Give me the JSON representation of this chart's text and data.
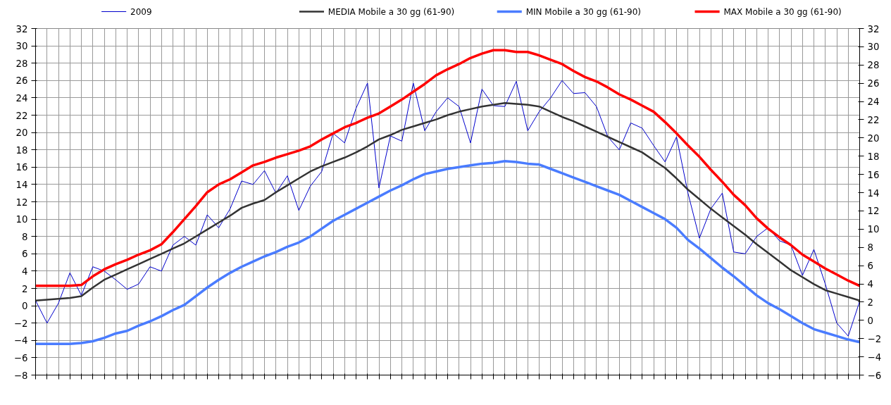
{
  "chart_data": {
    "type": "line",
    "categories": [
      null,
      null,
      null,
      null,
      null,
      null,
      null,
      null,
      null,
      null,
      null,
      null,
      null,
      null,
      null,
      null,
      null,
      null,
      null,
      null,
      null,
      null,
      null,
      null,
      null,
      null,
      null,
      null,
      null,
      null,
      null,
      null,
      null,
      null,
      null,
      null,
      null,
      null,
      null,
      null,
      null,
      null,
      null,
      null,
      null,
      null,
      null,
      null,
      null,
      null,
      null,
      null,
      null,
      null,
      null,
      null,
      null,
      null,
      null,
      null,
      null,
      null,
      null,
      null,
      null,
      null,
      null,
      null,
      null,
      null,
      null,
      null,
      null
    ],
    "ylim": [
      -8,
      32
    ],
    "yticks": [
      -8,
      -6,
      -4,
      -2,
      0,
      2,
      4,
      6,
      8,
      10,
      12,
      14,
      16,
      18,
      20,
      22,
      24,
      26,
      28,
      30,
      32
    ],
    "y2lim": [
      -6,
      32
    ],
    "y2ticks": [
      -6,
      -4,
      -2,
      0,
      2,
      4,
      6,
      8,
      10,
      12,
      14,
      16,
      18,
      20,
      22,
      24,
      26,
      28,
      30,
      32
    ],
    "grid": true,
    "legend": "top",
    "series": [
      {
        "name": "2009",
        "color": "#0000cc",
        "values": [
          0.6,
          -2,
          0.3,
          3.8,
          1.2,
          4.5,
          4,
          3,
          1.9,
          2.5,
          4.5,
          4,
          7,
          8,
          7,
          10.5,
          9,
          11.2,
          14.4,
          14,
          15.6,
          13,
          15,
          11,
          13.8,
          15.5,
          19.9,
          18.8,
          22.8,
          25.7,
          13.6,
          19.6,
          19,
          25.7,
          20.2,
          22.4,
          24,
          23,
          18.8,
          25,
          23.1,
          23,
          25.9,
          20.2,
          22.4,
          24,
          26,
          24.5,
          24.6,
          23,
          19.5,
          18,
          21.1,
          20.5,
          18.5,
          16.6,
          19.5,
          13,
          7.8,
          11.2,
          13,
          6.2,
          6,
          8,
          9,
          7.5,
          7,
          3.5,
          6.5,
          2.5,
          -2,
          -3.5,
          0.5
        ]
      },
      {
        "name": "MEDIA Mobile a 30 gg (61-90)",
        "color": "#333333",
        "values": [
          0.6,
          0.7,
          0.8,
          0.9,
          1.1,
          2.1,
          3.0,
          3.6,
          4.2,
          4.8,
          5.4,
          6.0,
          6.6,
          7.2,
          8.0,
          8.8,
          9.6,
          10.4,
          11.3,
          11.8,
          12.2,
          13.1,
          13.9,
          14.7,
          15.5,
          16.1,
          16.6,
          17.1,
          17.7,
          18.4,
          19.2,
          19.7,
          20.3,
          20.7,
          21.1,
          21.5,
          22.0,
          22.4,
          22.7,
          23.0,
          23.2,
          23.4,
          23.3,
          23.2,
          23.0,
          22.4,
          21.8,
          21.3,
          20.7,
          20.1,
          19.5,
          18.9,
          18.3,
          17.7,
          16.8,
          15.9,
          14.7,
          13.4,
          12.3,
          11.2,
          10.2,
          9.2,
          8.2,
          7.1,
          6.1,
          5.1,
          4.1,
          3.3,
          2.5,
          1.8,
          1.4,
          1.0,
          0.6
        ]
      },
      {
        "name": "MIN Mobile a 30 gg (61-90)",
        "color": "#4a7cff",
        "values": [
          -4.4,
          -4.4,
          -4.4,
          -4.4,
          -4.3,
          -4.1,
          -3.7,
          -3.2,
          -2.9,
          -2.3,
          -1.8,
          -1.2,
          -0.5,
          0.1,
          1.1,
          2.1,
          3.0,
          3.8,
          4.5,
          5.1,
          5.7,
          6.2,
          6.8,
          7.3,
          8.0,
          8.9,
          9.8,
          10.5,
          11.2,
          11.9,
          12.6,
          13.3,
          13.9,
          14.6,
          15.2,
          15.5,
          15.8,
          16.0,
          16.2,
          16.4,
          16.5,
          16.7,
          16.6,
          16.4,
          16.3,
          15.8,
          15.3,
          14.8,
          14.3,
          13.8,
          13.3,
          12.8,
          12.1,
          11.4,
          10.7,
          10.0,
          9.0,
          7.6,
          6.6,
          5.5,
          4.4,
          3.4,
          2.3,
          1.2,
          0.3,
          -0.4,
          -1.2,
          -2.0,
          -2.7,
          -3.1,
          -3.5,
          -3.9,
          -4.2
        ]
      },
      {
        "name": "MAX Mobile a 30 gg (61-90)",
        "color": "#ff0000",
        "values": [
          2.3,
          2.3,
          2.3,
          2.3,
          2.4,
          3.4,
          4.2,
          4.8,
          5.3,
          5.9,
          6.4,
          7.1,
          8.5,
          10,
          11.5,
          13.1,
          14,
          14.6,
          15.4,
          16.2,
          16.6,
          17.1,
          17.5,
          17.9,
          18.4,
          19.2,
          19.9,
          20.6,
          21.1,
          21.7,
          22.2,
          23.0,
          23.8,
          24.7,
          25.6,
          26.6,
          27.3,
          27.9,
          28.6,
          29.1,
          29.5,
          29.5,
          29.3,
          29.3,
          28.9,
          28.4,
          27.9,
          27.1,
          26.4,
          25.9,
          25.2,
          24.4,
          23.8,
          23.1,
          22.4,
          21.2,
          19.9,
          18.5,
          17.2,
          15.7,
          14.3,
          12.8,
          11.6,
          10.1,
          8.9,
          7.9,
          7.0,
          5.9,
          5.1,
          4.3,
          3.6,
          2.9,
          2.3
        ]
      }
    ]
  }
}
